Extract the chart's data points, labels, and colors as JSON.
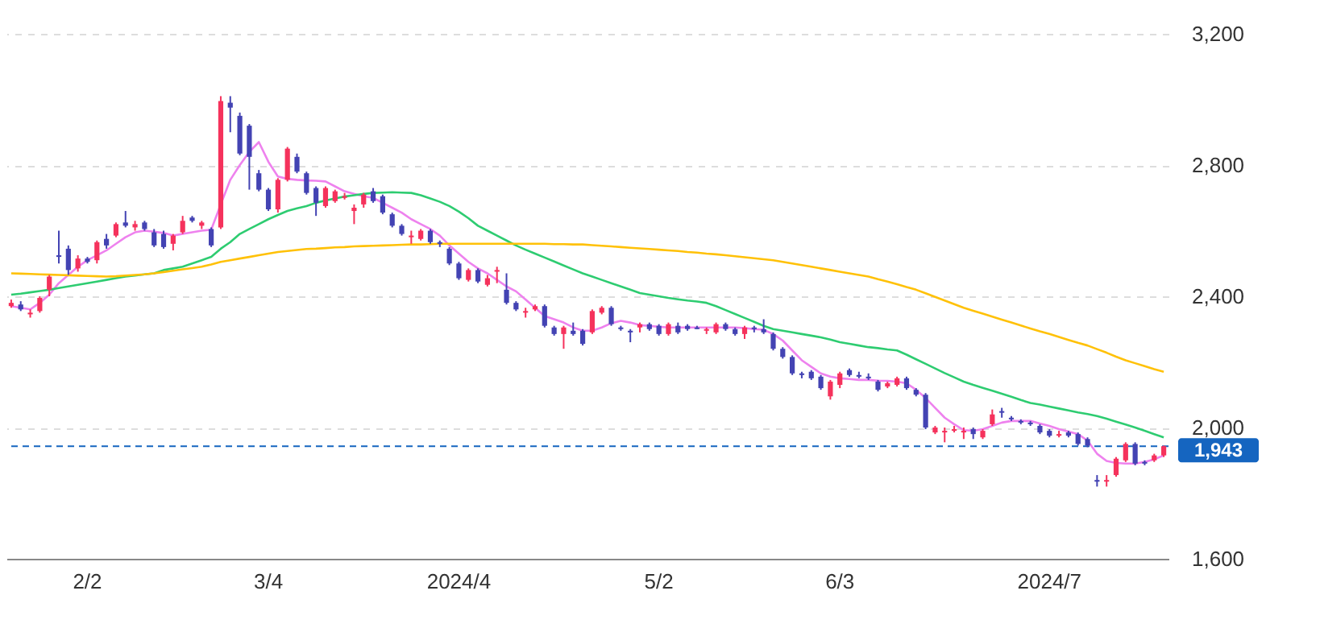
{
  "chart_data": {
    "type": "candlestick",
    "categories": [
      null,
      null,
      null,
      null,
      null,
      null,
      null,
      null,
      "2/2",
      null,
      null,
      null,
      null,
      null,
      null,
      null,
      null,
      null,
      null,
      null,
      null,
      null,
      null,
      null,
      null,
      null,
      null,
      "3/4",
      null,
      null,
      null,
      null,
      null,
      null,
      null,
      null,
      null,
      null,
      null,
      null,
      null,
      null,
      null,
      null,
      null,
      null,
      null,
      "2024/4",
      null,
      null,
      null,
      null,
      null,
      null,
      null,
      null,
      null,
      null,
      null,
      null,
      null,
      null,
      null,
      null,
      null,
      null,
      null,
      null,
      "5/2",
      null,
      null,
      null,
      null,
      null,
      null,
      null,
      null,
      null,
      null,
      null,
      null,
      null,
      null,
      null,
      null,
      null,
      null,
      "6/3",
      null,
      null,
      null,
      null,
      null,
      null,
      null,
      null,
      null,
      null,
      null,
      null,
      null,
      null,
      null,
      null,
      null,
      null,
      null,
      null,
      null,
      "2024/7",
      null,
      null,
      null,
      null,
      null,
      null,
      null,
      null,
      null,
      null,
      null,
      null
    ],
    "ohlc": [
      [
        2370,
        2390,
        2365,
        2380
      ],
      [
        2375,
        2385,
        2355,
        2360
      ],
      [
        2345,
        2360,
        2335,
        2350
      ],
      [
        2355,
        2400,
        2350,
        2395
      ],
      [
        2420,
        2465,
        2400,
        2460
      ],
      [
        2525,
        2600,
        2500,
        2520
      ],
      [
        2545,
        2555,
        2465,
        2480
      ],
      [
        2485,
        2525,
        2475,
        2515
      ],
      [
        2515,
        2520,
        2500,
        2505
      ],
      [
        2510,
        2570,
        2500,
        2565
      ],
      [
        2575,
        2590,
        2545,
        2555
      ],
      [
        2585,
        2625,
        2580,
        2620
      ],
      [
        2625,
        2660,
        2610,
        2615
      ],
      [
        2610,
        2630,
        2600,
        2620
      ],
      [
        2625,
        2630,
        2600,
        2605
      ],
      [
        2595,
        2605,
        2550,
        2555
      ],
      [
        2590,
        2600,
        2545,
        2550
      ],
      [
        2560,
        2590,
        2540,
        2585
      ],
      [
        2595,
        2645,
        2590,
        2630
      ],
      [
        2640,
        2645,
        2625,
        2630
      ],
      [
        2615,
        2630,
        2605,
        2625
      ],
      [
        2605,
        2610,
        2550,
        2555
      ],
      [
        2610,
        3010,
        2605,
        2995
      ],
      [
        2990,
        3010,
        2900,
        2975
      ],
      [
        2950,
        2960,
        2830,
        2835
      ],
      [
        2920,
        2925,
        2725,
        2825
      ],
      [
        2775,
        2785,
        2720,
        2725
      ],
      [
        2725,
        2730,
        2660,
        2665
      ],
      [
        2665,
        2760,
        2655,
        2755
      ],
      [
        2755,
        2855,
        2750,
        2850
      ],
      [
        2825,
        2835,
        2775,
        2780
      ],
      [
        2775,
        2780,
        2710,
        2715
      ],
      [
        2730,
        2735,
        2645,
        2685
      ],
      [
        2675,
        2735,
        2670,
        2730
      ],
      [
        2690,
        2725,
        2685,
        2720
      ],
      [
        2700,
        2715,
        2695,
        2705
      ],
      [
        2660,
        2680,
        2620,
        2670
      ],
      [
        2680,
        2715,
        2670,
        2710
      ],
      [
        2720,
        2730,
        2685,
        2690
      ],
      [
        2705,
        2710,
        2650,
        2655
      ],
      [
        2650,
        2655,
        2610,
        2615
      ],
      [
        2615,
        2620,
        2585,
        2590
      ],
      [
        2580,
        2600,
        2560,
        2585
      ],
      [
        2575,
        2605,
        2570,
        2600
      ],
      [
        2600,
        2605,
        2560,
        2565
      ],
      [
        2565,
        2570,
        2550,
        2560
      ],
      [
        2545,
        2550,
        2495,
        2500
      ],
      [
        2500,
        2505,
        2450,
        2455
      ],
      [
        2450,
        2485,
        2445,
        2480
      ],
      [
        2480,
        2485,
        2440,
        2445
      ],
      [
        2435,
        2465,
        2430,
        2455
      ],
      [
        2475,
        2490,
        2440,
        2480
      ],
      [
        2420,
        2470,
        2375,
        2380
      ],
      [
        2380,
        2385,
        2355,
        2360
      ],
      [
        2350,
        2365,
        2335,
        2355
      ],
      [
        2360,
        2375,
        2355,
        2370
      ],
      [
        2370,
        2375,
        2305,
        2310
      ],
      [
        2305,
        2310,
        2280,
        2285
      ],
      [
        2285,
        2310,
        2240,
        2305
      ],
      [
        2295,
        2320,
        2280,
        2285
      ],
      [
        2295,
        2300,
        2250,
        2255
      ],
      [
        2290,
        2360,
        2285,
        2355
      ],
      [
        2350,
        2370,
        2345,
        2365
      ],
      [
        2365,
        2370,
        2310,
        2315
      ],
      [
        2305,
        2310,
        2295,
        2300
      ],
      [
        2295,
        2300,
        2260,
        2290
      ],
      [
        2305,
        2320,
        2290,
        2315
      ],
      [
        2315,
        2320,
        2295,
        2300
      ],
      [
        2310,
        2315,
        2280,
        2285
      ],
      [
        2285,
        2320,
        2280,
        2315
      ],
      [
        2310,
        2320,
        2285,
        2290
      ],
      [
        2310,
        2315,
        2295,
        2300
      ],
      [
        2305,
        2310,
        2300,
        2300
      ],
      [
        2295,
        2305,
        2285,
        2300
      ],
      [
        2290,
        2320,
        2285,
        2315
      ],
      [
        2315,
        2320,
        2295,
        2300
      ],
      [
        2300,
        2305,
        2280,
        2285
      ],
      [
        2285,
        2310,
        2270,
        2305
      ],
      [
        2305,
        2310,
        2290,
        2300
      ],
      [
        2300,
        2330,
        2285,
        2290
      ],
      [
        2285,
        2290,
        2235,
        2240
      ],
      [
        2240,
        2245,
        2210,
        2215
      ],
      [
        2215,
        2220,
        2160,
        2165
      ],
      [
        2165,
        2170,
        2150,
        2160
      ],
      [
        2170,
        2175,
        2145,
        2150
      ],
      [
        2155,
        2160,
        2115,
        2120
      ],
      [
        2095,
        2145,
        2085,
        2140
      ],
      [
        2130,
        2170,
        2120,
        2165
      ],
      [
        2175,
        2180,
        2155,
        2160
      ],
      [
        2160,
        2170,
        2150,
        2155
      ],
      [
        2155,
        2165,
        2145,
        2150
      ],
      [
        2140,
        2145,
        2110,
        2115
      ],
      [
        2125,
        2140,
        2120,
        2135
      ],
      [
        2130,
        2155,
        2125,
        2150
      ],
      [
        2150,
        2155,
        2115,
        2120
      ],
      [
        2115,
        2120,
        2095,
        2100
      ],
      [
        2100,
        2105,
        1995,
        2000
      ],
      [
        1985,
        2005,
        1980,
        2000
      ],
      [
        1985,
        2000,
        1955,
        1990
      ],
      [
        1990,
        2005,
        1985,
        1995
      ],
      [
        1985,
        2000,
        1965,
        1990
      ],
      [
        1995,
        2000,
        1965,
        1980
      ],
      [
        1970,
        1995,
        1965,
        1990
      ],
      [
        2010,
        2055,
        2005,
        2040
      ],
      [
        2050,
        2060,
        2030,
        2045
      ],
      [
        2030,
        2035,
        2020,
        2025
      ],
      [
        2020,
        2025,
        2010,
        2015
      ],
      [
        2015,
        2020,
        2005,
        2010
      ],
      [
        2005,
        2010,
        1980,
        1985
      ],
      [
        1990,
        1995,
        1970,
        1975
      ],
      [
        1975,
        1990,
        1970,
        1980
      ],
      [
        1985,
        1990,
        1970,
        1975
      ],
      [
        1980,
        1985,
        1945,
        1950
      ],
      [
        1965,
        1970,
        1940,
        1945
      ],
      [
        1840,
        1855,
        1820,
        1835
      ],
      [
        1835,
        1855,
        1820,
        1840
      ],
      [
        1855,
        1910,
        1850,
        1905
      ],
      [
        1900,
        1955,
        1895,
        1950
      ],
      [
        1950,
        1955,
        1885,
        1890
      ],
      [
        1895,
        1900,
        1885,
        1890
      ],
      [
        1900,
        1920,
        1895,
        1915
      ],
      [
        1915,
        1945,
        1910,
        1943
      ]
    ],
    "colors": [
      "#f5325c",
      "#4343b3",
      "#f5325c",
      "#f5325c",
      "#f5325c",
      "#4343b3",
      "#4343b3",
      "#f5325c",
      "#4343b3",
      "#f5325c",
      "#4343b3",
      "#f5325c",
      "#4343b3",
      "#f5325c",
      "#4343b3",
      "#4343b3",
      "#4343b3",
      "#f5325c",
      "#f5325c",
      "#4343b3",
      "#f5325c",
      "#4343b3",
      "#f5325c",
      "#4343b3",
      "#4343b3",
      "#4343b3",
      "#4343b3",
      "#4343b3",
      "#f5325c",
      "#f5325c",
      "#4343b3",
      "#4343b3",
      "#4343b3",
      "#f5325c",
      "#f5325c",
      "#f5325c",
      "#f5325c",
      "#f5325c",
      "#4343b3",
      "#4343b3",
      "#4343b3",
      "#4343b3",
      "#f5325c",
      "#f5325c",
      "#4343b3",
      "#4343b3",
      "#4343b3",
      "#4343b3",
      "#f5325c",
      "#4343b3",
      "#f5325c",
      "#f5325c",
      "#4343b3",
      "#4343b3",
      "#f5325c",
      "#f5325c",
      "#4343b3",
      "#4343b3",
      "#f5325c",
      "#4343b3",
      "#4343b3",
      "#f5325c",
      "#f5325c",
      "#4343b3",
      "#4343b3",
      "#4343b3",
      "#f5325c",
      "#4343b3",
      "#4343b3",
      "#f5325c",
      "#4343b3",
      "#4343b3",
      "#4343b3",
      "#f5325c",
      "#f5325c",
      "#4343b3",
      "#4343b3",
      "#f5325c",
      "#4343b3",
      "#4343b3",
      "#4343b3",
      "#4343b3",
      "#4343b3",
      "#4343b3",
      "#4343b3",
      "#4343b3",
      "#f5325c",
      "#f5325c",
      "#4343b3",
      "#4343b3",
      "#4343b3",
      "#4343b3",
      "#f5325c",
      "#f5325c",
      "#4343b3",
      "#4343b3",
      "#4343b3",
      "#f5325c",
      "#f5325c",
      "#f5325c",
      "#f5325c",
      "#4343b3",
      "#f5325c",
      "#f5325c",
      "#4343b3",
      "#4343b3",
      "#4343b3",
      "#4343b3",
      "#4343b3",
      "#4343b3",
      "#f5325c",
      "#4343b3",
      "#4343b3",
      "#4343b3",
      "#4343b3",
      "#f5325c",
      "#f5325c",
      "#f5325c",
      "#4343b3",
      "#4343b3",
      "#f5325c",
      "#f5325c"
    ],
    "series": [
      {
        "type": "line",
        "color": "#ee82ee",
        "values": [
          2370,
          2365,
          2360,
          2380,
          2405,
          2440,
          2465,
          2490,
          2510,
          2525,
          2540,
          2560,
          2580,
          2595,
          2600,
          2597,
          2593,
          2585,
          2590,
          2595,
          2600,
          2603,
          2680,
          2755,
          2800,
          2840,
          2870,
          2810,
          2765,
          2758,
          2755,
          2753,
          2752,
          2750,
          2735,
          2720,
          2712,
          2705,
          2700,
          2685,
          2670,
          2655,
          2635,
          2620,
          2605,
          2585,
          2555,
          2530,
          2505,
          2485,
          2470,
          2450,
          2430,
          2415,
          2390,
          2365,
          2340,
          2330,
          2320,
          2305,
          2295,
          2295,
          2305,
          2318,
          2325,
          2320,
          2312,
          2310,
          2307,
          2305,
          2305,
          2305,
          2305,
          2305,
          2305,
          2305,
          2305,
          2303,
          2300,
          2298,
          2285,
          2265,
          2235,
          2205,
          2185,
          2165,
          2155,
          2150,
          2148,
          2145,
          2145,
          2143,
          2142,
          2140,
          2135,
          2115,
          2090,
          2060,
          2030,
          2010,
          1992,
          1990,
          1995,
          2005,
          2015,
          2020,
          2020,
          2020,
          2012,
          2005,
          1995,
          1988,
          1980,
          1960,
          1920,
          1898,
          1892,
          1890,
          1890,
          1895,
          1903,
          1915
        ]
      },
      {
        "type": "line",
        "color": "#2ecc71",
        "values": [
          2405,
          2408,
          2412,
          2416,
          2420,
          2425,
          2430,
          2435,
          2440,
          2445,
          2450,
          2455,
          2460,
          2463,
          2467,
          2470,
          2480,
          2485,
          2490,
          2500,
          2510,
          2520,
          2545,
          2565,
          2590,
          2605,
          2620,
          2635,
          2648,
          2660,
          2668,
          2675,
          2685,
          2692,
          2698,
          2704,
          2708,
          2712,
          2715,
          2716,
          2717,
          2716,
          2715,
          2708,
          2698,
          2688,
          2675,
          2658,
          2638,
          2615,
          2600,
          2585,
          2570,
          2555,
          2542,
          2530,
          2518,
          2506,
          2494,
          2482,
          2470,
          2460,
          2450,
          2440,
          2430,
          2420,
          2410,
          2405,
          2400,
          2395,
          2391,
          2387,
          2384,
          2380,
          2370,
          2358,
          2346,
          2334,
          2322,
          2310,
          2300,
          2295,
          2290,
          2285,
          2280,
          2275,
          2268,
          2260,
          2255,
          2250,
          2245,
          2242,
          2238,
          2235,
          2222,
          2208,
          2194,
          2180,
          2166,
          2153,
          2140,
          2130,
          2121,
          2112,
          2103,
          2094,
          2084,
          2075,
          2070,
          2064,
          2058,
          2052,
          2046,
          2041,
          2035,
          2027,
          2018,
          2009,
          2000,
          1990,
          1980,
          1970
        ]
      },
      {
        "type": "line",
        "color": "#ffc107",
        "values": [
          2470,
          2469,
          2468,
          2467,
          2466,
          2465,
          2464,
          2463,
          2462,
          2461,
          2460,
          2461,
          2463,
          2465,
          2467,
          2470,
          2474,
          2478,
          2482,
          2486,
          2490,
          2497,
          2505,
          2510,
          2515,
          2520,
          2525,
          2530,
          2535,
          2538,
          2541,
          2544,
          2545,
          2547,
          2549,
          2550,
          2552,
          2553,
          2554,
          2555,
          2556,
          2557,
          2558,
          2558,
          2559,
          2560,
          2560,
          2560,
          2560,
          2560,
          2560,
          2560,
          2560,
          2560,
          2560,
          2560,
          2560,
          2559,
          2559,
          2558,
          2558,
          2556,
          2554,
          2552,
          2550,
          2548,
          2546,
          2544,
          2542,
          2540,
          2538,
          2535,
          2533,
          2530,
          2528,
          2525,
          2522,
          2519,
          2516,
          2513,
          2510,
          2505,
          2500,
          2495,
          2490,
          2485,
          2480,
          2475,
          2470,
          2465,
          2460,
          2452,
          2445,
          2437,
          2428,
          2420,
          2409,
          2398,
          2387,
          2376,
          2365,
          2356,
          2347,
          2338,
          2329,
          2320,
          2311,
          2302,
          2293,
          2285,
          2276,
          2267,
          2258,
          2250,
          2239,
          2228,
          2216,
          2205,
          2196,
          2187,
          2178,
          2170
        ]
      }
    ],
    "ylim": [
      1600,
      3200
    ],
    "yticks": [
      {
        "value": 1600,
        "label": "1,600"
      },
      {
        "value": 2000,
        "label": "2,000"
      },
      {
        "value": 2400,
        "label": "2,400"
      },
      {
        "value": 2800,
        "label": "2,800"
      },
      {
        "value": 3200,
        "label": "3,200"
      }
    ],
    "grid": "y",
    "ref_lines": [
      {
        "axis": "y",
        "value": 1943,
        "label": "1,943",
        "color": "#1565c0",
        "line_style": "dashed"
      }
    ]
  }
}
